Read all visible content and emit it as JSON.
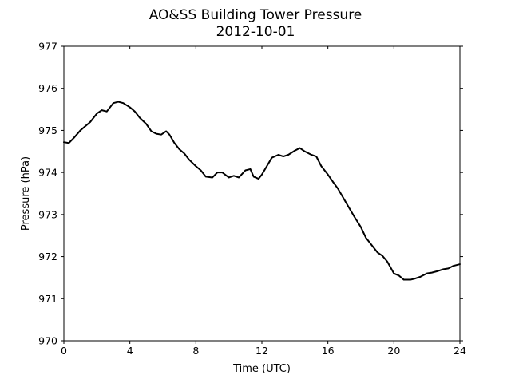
{
  "chart_data": {
    "type": "line",
    "title": "AO&SS Building Tower Pressure",
    "subtitle": "2012-10-01",
    "xlabel": "Time (UTC)",
    "ylabel": "Pressure (hPa)",
    "xlim": [
      0,
      24
    ],
    "ylim": [
      970,
      977
    ],
    "xticks": [
      0,
      4,
      8,
      12,
      16,
      20,
      24
    ],
    "yticks": [
      970,
      971,
      972,
      973,
      974,
      975,
      976,
      977
    ],
    "grid": false,
    "line_color": "#000000",
    "series": [
      {
        "x": [
          0,
          0.3,
          0.6,
          1.0,
          1.3,
          1.6,
          2.0,
          2.3,
          2.6,
          2.8,
          3.0,
          3.3,
          3.6,
          4.0,
          4.3,
          4.6,
          5.0,
          5.3,
          5.6,
          5.9,
          6.2,
          6.4,
          6.7,
          7.0,
          7.3,
          7.6,
          8.0,
          8.3,
          8.6,
          9.0,
          9.3,
          9.6,
          10.0,
          10.3,
          10.6,
          11.0,
          11.3,
          11.5,
          11.8,
          12.0,
          12.3,
          12.6,
          13.0,
          13.3,
          13.6,
          14.0,
          14.3,
          14.6,
          15.0,
          15.3,
          15.6,
          16.0,
          16.3,
          16.6,
          17.0,
          17.3,
          17.6,
          18.0,
          18.3,
          18.6,
          19.0,
          19.3,
          19.6,
          20.0,
          20.3,
          20.6,
          21.0,
          21.3,
          21.6,
          22.0,
          22.3,
          22.6,
          23.0,
          23.3,
          23.6,
          24.0
        ],
        "values": [
          974.72,
          974.7,
          974.82,
          975.0,
          975.1,
          975.2,
          975.4,
          975.48,
          975.45,
          975.55,
          975.65,
          975.68,
          975.65,
          975.55,
          975.45,
          975.3,
          975.15,
          974.98,
          974.92,
          974.9,
          974.98,
          974.9,
          974.7,
          974.55,
          974.45,
          974.3,
          974.15,
          974.05,
          973.9,
          973.88,
          974.0,
          974.0,
          973.88,
          973.92,
          973.88,
          974.05,
          974.08,
          973.9,
          973.85,
          973.95,
          974.15,
          974.35,
          974.42,
          974.38,
          974.42,
          974.52,
          974.58,
          974.5,
          974.42,
          974.38,
          974.15,
          973.95,
          973.78,
          973.62,
          973.35,
          973.15,
          972.95,
          972.7,
          972.45,
          972.3,
          972.1,
          972.02,
          971.88,
          971.6,
          971.55,
          971.45,
          971.45,
          971.48,
          971.52,
          971.6,
          971.62,
          971.65,
          971.7,
          971.72,
          971.78,
          971.82
        ]
      }
    ]
  }
}
